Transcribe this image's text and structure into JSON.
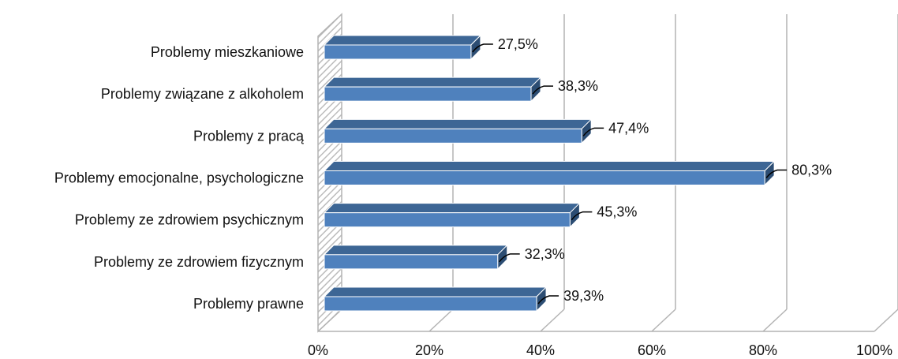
{
  "chart_data": {
    "type": "bar",
    "orientation": "horizontal",
    "style": "3d",
    "categories": [
      "Problemy mieszkaniowe",
      "Problemy związane z alkoholem",
      "Problemy z pracą",
      "Problemy emocjonalne, psychologiczne",
      "Problemy ze zdrowiem psychicznym",
      "Problemy ze zdrowiem fizycznym",
      "Problemy prawne"
    ],
    "values": [
      27.5,
      38.3,
      47.4,
      80.3,
      45.3,
      32.3,
      39.3
    ],
    "value_labels": [
      "27,5%",
      "38,3%",
      "47,4%",
      "80,3%",
      "45,3%",
      "32,3%",
      "39,3%"
    ],
    "xlim": [
      0,
      100
    ],
    "ticks": [
      0,
      20,
      40,
      60,
      80,
      100
    ],
    "tick_labels": [
      "0%",
      "20%",
      "40%",
      "60%",
      "80%",
      "100%"
    ],
    "grid": true,
    "legend": "none",
    "colors": {
      "bar_front": "#4f81bd",
      "bar_top": "#3d6695",
      "bar_side": "#2c4d73",
      "grid": "#b3b3b3",
      "wall": "#d9d9d9"
    }
  }
}
